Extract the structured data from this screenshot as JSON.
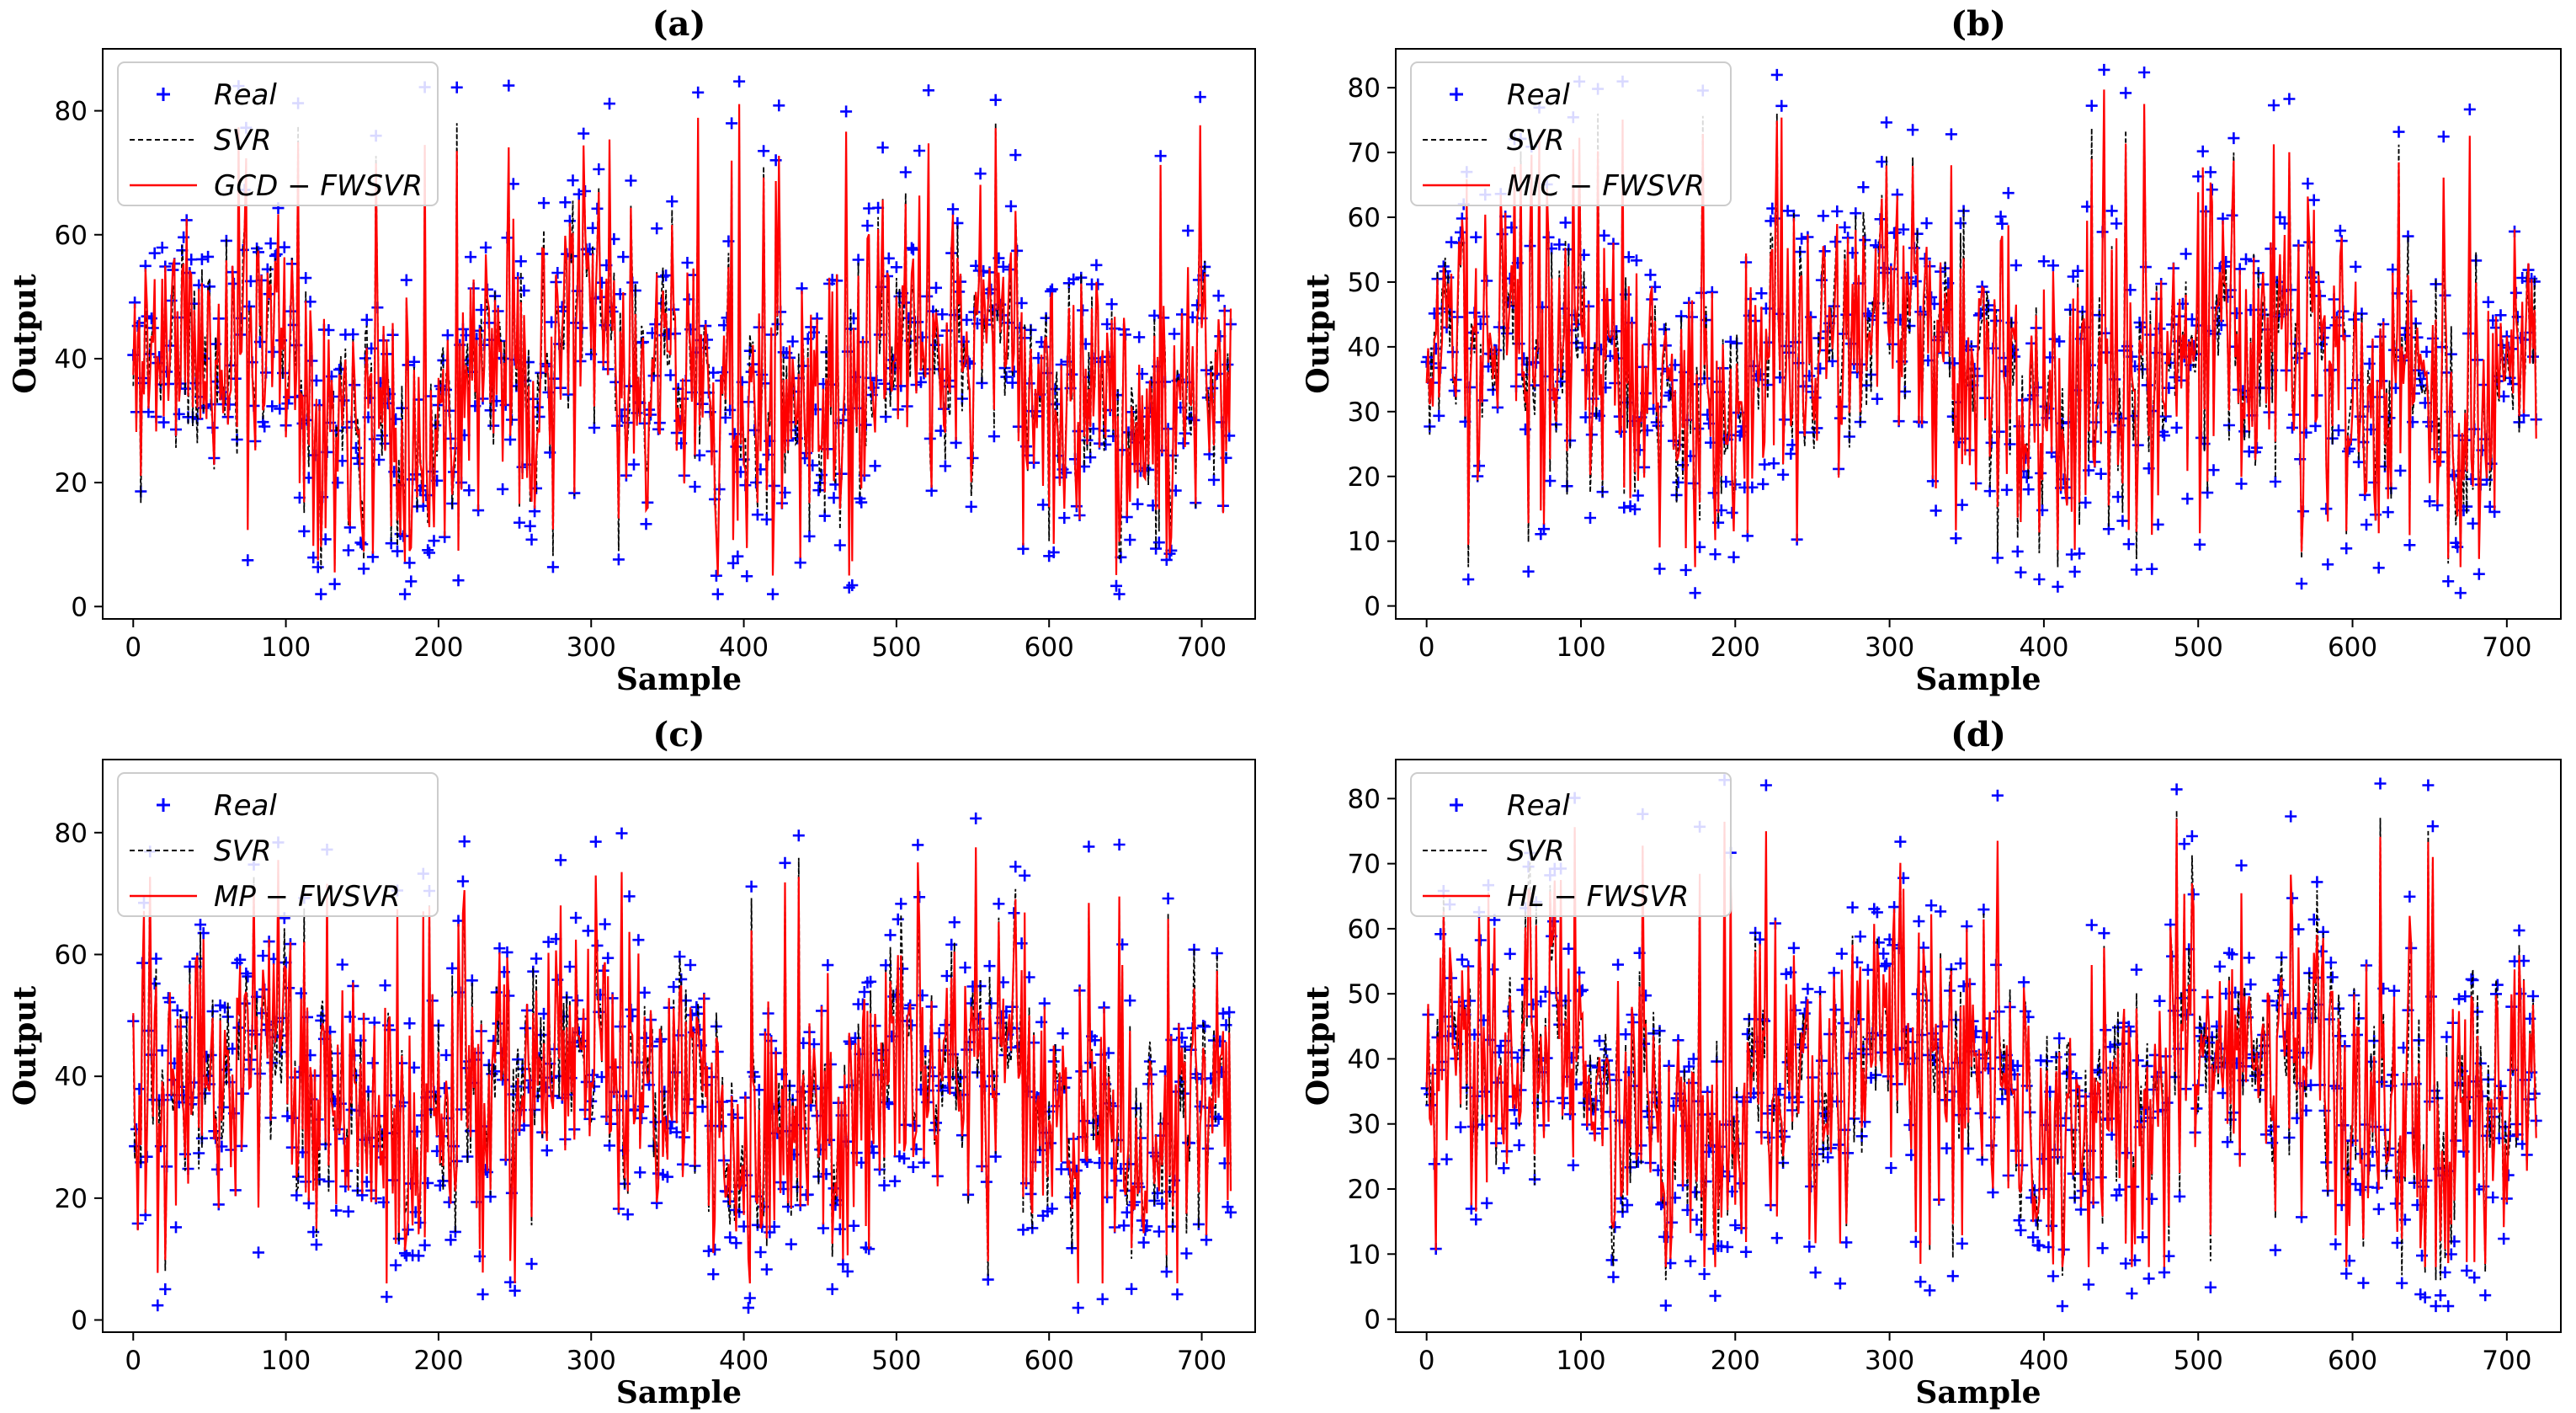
{
  "colors": {
    "real": "#0000ff",
    "svr": "#000000",
    "fwsvr": "#ff0000"
  },
  "chart_data": [
    {
      "type": "line",
      "title": "(a)",
      "xlabel": "Sample",
      "ylabel": "Output",
      "xlim": [
        -20,
        735
      ],
      "ylim": [
        -2,
        90
      ],
      "xticks": [
        0,
        100,
        200,
        300,
        400,
        500,
        600,
        700
      ],
      "yticks": [
        0,
        20,
        40,
        60,
        80
      ],
      "legend": "top-left",
      "series": [
        {
          "name": "Real",
          "style": "markers",
          "n_points": 720,
          "mean": 37,
          "range": [
            2,
            86
          ],
          "seed": 11
        },
        {
          "name": "SVR",
          "style": "dashed",
          "n_points": 720,
          "mean": 36,
          "range": [
            6,
            78
          ],
          "seed": 11
        },
        {
          "name": "GCD − FWSVR",
          "style": "line",
          "n_points": 720,
          "mean": 36,
          "range": [
            5,
            86
          ],
          "seed": 11
        }
      ]
    },
    {
      "type": "line",
      "title": "(b)",
      "xlabel": "Sample",
      "ylabel": "Output",
      "xlim": [
        -20,
        735
      ],
      "ylim": [
        -2,
        86
      ],
      "xticks": [
        0,
        100,
        200,
        300,
        400,
        500,
        600,
        700
      ],
      "yticks": [
        0,
        10,
        20,
        30,
        40,
        50,
        60,
        70,
        80
      ],
      "legend": "top-left",
      "series": [
        {
          "name": "Real",
          "style": "markers",
          "n_points": 720,
          "mean": 37,
          "range": [
            2,
            83
          ],
          "seed": 11
        },
        {
          "name": "SVR",
          "style": "dashed",
          "n_points": 720,
          "mean": 36,
          "range": [
            6,
            76
          ],
          "seed": 11
        },
        {
          "name": "MIC − FWSVR",
          "style": "line",
          "n_points": 720,
          "mean": 36,
          "range": [
            6,
            83
          ],
          "seed": 11
        }
      ]
    },
    {
      "type": "line",
      "title": "(c)",
      "xlabel": "Sample",
      "ylabel": "Output",
      "xlim": [
        -20,
        735
      ],
      "ylim": [
        -2,
        92
      ],
      "xticks": [
        0,
        100,
        200,
        300,
        400,
        500,
        600,
        700
      ],
      "yticks": [
        0,
        20,
        40,
        60,
        80
      ],
      "legend": "top-left",
      "series": [
        {
          "name": "Real",
          "style": "markers",
          "n_points": 720,
          "mean": 37,
          "range": [
            2,
            83
          ],
          "seed": 11
        },
        {
          "name": "SVR",
          "style": "dashed",
          "n_points": 720,
          "mean": 36,
          "range": [
            6,
            78
          ],
          "seed": 11
        },
        {
          "name": "MP − FWSVR",
          "style": "line",
          "n_points": 720,
          "mean": 36,
          "range": [
            6,
            89
          ],
          "seed": 11
        }
      ]
    },
    {
      "type": "line",
      "title": "(d)",
      "xlabel": "Sample",
      "ylabel": "Output",
      "xlim": [
        -20,
        735
      ],
      "ylim": [
        -2,
        86
      ],
      "xticks": [
        0,
        100,
        200,
        300,
        400,
        500,
        600,
        700
      ],
      "yticks": [
        0,
        10,
        20,
        30,
        40,
        50,
        60,
        70,
        80
      ],
      "legend": "top-left",
      "series": [
        {
          "name": "Real",
          "style": "markers",
          "n_points": 720,
          "mean": 37,
          "range": [
            2,
            83
          ],
          "seed": 11
        },
        {
          "name": "SVR",
          "style": "dashed",
          "n_points": 720,
          "mean": 36,
          "range": [
            6,
            80
          ],
          "seed": 11
        },
        {
          "name": "HL − FWSVR",
          "style": "line",
          "n_points": 720,
          "mean": 36,
          "range": [
            8,
            77
          ],
          "seed": 11
        }
      ]
    }
  ]
}
